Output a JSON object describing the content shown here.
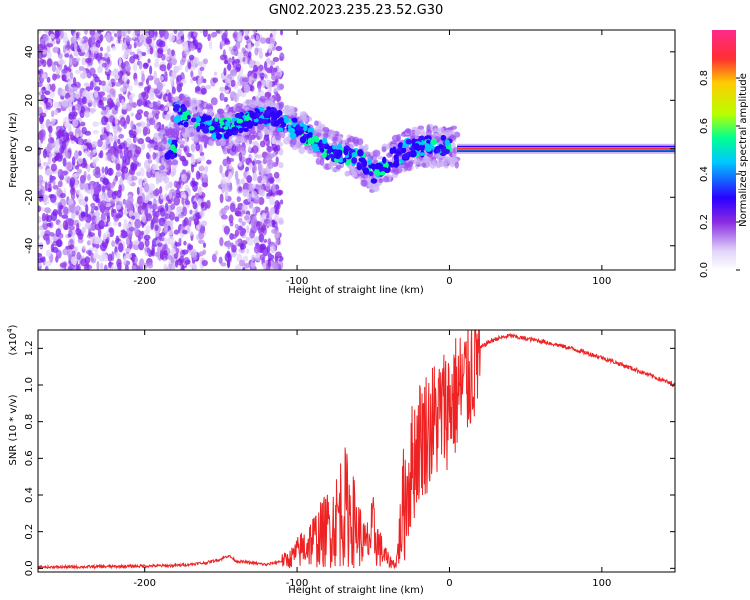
{
  "title": "GN02.2023.235.23.52.G30",
  "chart_data": [
    {
      "type": "heatmap",
      "xlabel": "Height of straight line (km)",
      "ylabel": "Frequency (Hz)",
      "xlim": [
        -270,
        148
      ],
      "ylim": [
        -50,
        49
      ],
      "xticks": [
        -200,
        -100,
        0,
        100
      ],
      "yticks": [
        -40,
        -20,
        0,
        20,
        40
      ],
      "colorbar": {
        "label": "Normalized spectral amplitude",
        "range": [
          0.0,
          1.0
        ],
        "ticks": [
          0.0,
          0.2,
          0.4,
          0.6,
          0.8
        ],
        "colormap": [
          "#e0d4f8",
          "#8a2be2",
          "#2a00ff",
          "#00c8ff",
          "#00ff90",
          "#b8ff00",
          "#ffcc00",
          "#ff3030",
          "#ff2a8a"
        ]
      },
      "ridge": {
        "description_points": [
          {
            "x": -180,
            "y": 15
          },
          {
            "x": -150,
            "y": 8
          },
          {
            "x": -120,
            "y": 14
          },
          {
            "x": -100,
            "y": 8
          },
          {
            "x": -80,
            "y": 0
          },
          {
            "x": -60,
            "y": -4
          },
          {
            "x": -50,
            "y": -10
          },
          {
            "x": -40,
            "y": -5
          },
          {
            "x": -30,
            "y": -1
          },
          {
            "x": -20,
            "y": 1
          },
          {
            "x": 0,
            "y": 1
          },
          {
            "x": 148,
            "y": 0
          }
        ],
        "steady_line_start": 5,
        "steady_line_freq": 0
      }
    },
    {
      "type": "line",
      "xlabel": "Height of straight line (km)",
      "ylabel": "SNR (10 * v/v)",
      "yscale_note": "(x10",
      "yscale_exp": "4",
      "yscale_close": ")",
      "xlim": [
        -270,
        148
      ],
      "ylim": [
        -0.02,
        1.3
      ],
      "xticks": [
        -200,
        -100,
        0,
        100
      ],
      "yticks": [
        0.0,
        0.2,
        0.4,
        0.6,
        0.8,
        1.0,
        1.2
      ],
      "color": "#ee2222",
      "series": [
        {
          "x": [
            -270,
            -220,
            -180,
            -160,
            -150,
            -145,
            -140,
            -120,
            -105,
            -95,
            -85,
            -75,
            -70,
            -65,
            -60,
            -55,
            -50,
            -45,
            -40,
            -35,
            -30,
            -25,
            -20,
            -15,
            -10,
            -5,
            0,
            5,
            10,
            15,
            20,
            25,
            30,
            35,
            40,
            45,
            60,
            80,
            100,
            120,
            148
          ],
          "y": [
            0.005,
            0.01,
            0.015,
            0.03,
            0.05,
            0.07,
            0.04,
            0.02,
            0.05,
            0.12,
            0.18,
            0.25,
            0.35,
            0.3,
            0.2,
            0.12,
            0.2,
            0.1,
            0.04,
            0.02,
            0.35,
            0.55,
            0.7,
            0.75,
            0.8,
            0.85,
            0.9,
            0.95,
            1.0,
            1.1,
            1.2,
            1.23,
            1.25,
            1.26,
            1.27,
            1.26,
            1.24,
            1.2,
            1.15,
            1.09,
            1.0
          ]
        }
      ]
    }
  ]
}
